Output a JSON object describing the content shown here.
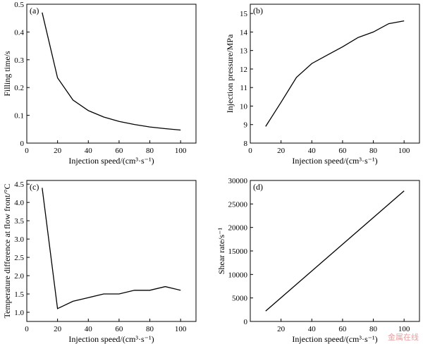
{
  "chart_data": [
    {
      "type": "line",
      "panel_label": "(a)",
      "xlabel": "Injection speed/(cm³·s⁻¹)",
      "ylabel": "Filling time/s",
      "xlim": [
        0,
        110
      ],
      "ylim": [
        0,
        0.5
      ],
      "xticks": [
        0,
        20,
        40,
        60,
        80,
        100
      ],
      "yticks": [
        0,
        0.1,
        0.2,
        0.3,
        0.4,
        0.5
      ],
      "ytick_labels": [
        "0",
        "0.1",
        "0.2",
        "0.3",
        "0.4",
        "0.5"
      ],
      "x": [
        10,
        20,
        30,
        40,
        50,
        60,
        70,
        80,
        90,
        100
      ],
      "y": [
        0.47,
        0.235,
        0.155,
        0.117,
        0.094,
        0.078,
        0.067,
        0.058,
        0.052,
        0.047
      ]
    },
    {
      "type": "line",
      "panel_label": "(b)",
      "xlabel": "Injection speed/(cm³·s⁻¹)",
      "ylabel": "Injection pressure/MPa",
      "xlim": [
        0,
        110
      ],
      "ylim": [
        8,
        15.5
      ],
      "xticks": [
        0,
        20,
        40,
        60,
        80,
        100
      ],
      "yticks": [
        8,
        9,
        10,
        11,
        12,
        13,
        14,
        15
      ],
      "ytick_labels": [
        "8",
        "9",
        "10",
        "11",
        "12",
        "13",
        "14",
        "15"
      ],
      "x": [
        10,
        20,
        30,
        40,
        50,
        60,
        70,
        80,
        90,
        100
      ],
      "y": [
        8.9,
        10.2,
        11.55,
        12.3,
        12.75,
        13.2,
        13.7,
        14.0,
        14.45,
        14.6
      ]
    },
    {
      "type": "line",
      "panel_label": "(c)",
      "xlabel": "Injection speed/(cm³·s⁻¹)",
      "ylabel": "Temperature difference at flow front/°C",
      "xlim": [
        0,
        110
      ],
      "ylim": [
        0.75,
        4.6
      ],
      "xticks": [
        0,
        20,
        40,
        60,
        80,
        100
      ],
      "yticks": [
        1.0,
        1.5,
        2.0,
        2.5,
        3.0,
        3.5,
        4.0,
        4.5
      ],
      "ytick_labels": [
        "1.0",
        "1.5",
        "2.0",
        "2.5",
        "3.0",
        "3.5",
        "4.0",
        "4.5"
      ],
      "x": [
        10,
        20,
        30,
        40,
        50,
        60,
        70,
        80,
        90,
        100
      ],
      "y": [
        4.4,
        1.1,
        1.3,
        1.4,
        1.5,
        1.5,
        1.6,
        1.6,
        1.7,
        1.6
      ]
    },
    {
      "type": "line",
      "panel_label": "(d)",
      "xlabel": "Injection speed/(cm³·s⁻¹)",
      "ylabel": "Shear rate/s⁻¹",
      "xlim": [
        0,
        110
      ],
      "ylim": [
        0,
        30000
      ],
      "xticks": [
        20,
        40,
        60,
        80,
        100
      ],
      "yticks": [
        0,
        5000,
        10000,
        15000,
        20000,
        25000,
        30000
      ],
      "ytick_labels": [
        "0",
        "5000",
        "10000",
        "15000",
        "20000",
        "25000",
        "30000"
      ],
      "x": [
        10,
        100
      ],
      "y": [
        2200,
        27800
      ]
    }
  ],
  "watermark": "金属在线"
}
